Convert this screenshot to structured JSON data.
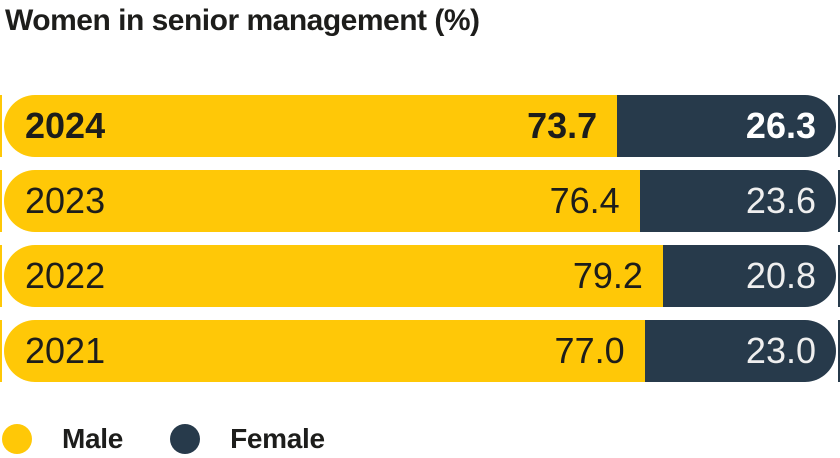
{
  "title": "Women in senior management (%)",
  "chart_data": {
    "type": "bar",
    "variant": "horizontal-stacked",
    "title": "Women in senior management (%)",
    "categories": [
      "2024",
      "2023",
      "2022",
      "2021"
    ],
    "series": [
      {
        "name": "Male",
        "color": "#FFC807",
        "values": [
          73.7,
          76.4,
          79.2,
          77.0
        ]
      },
      {
        "name": "Female",
        "color": "#273A4B",
        "values": [
          26.3,
          23.6,
          20.8,
          23.0
        ]
      }
    ],
    "value_format": "one-decimal-percent",
    "highlighted_category": "2024",
    "xlim": [
      0,
      100
    ],
    "grid": false,
    "legend_position": "bottom-left"
  },
  "legend": {
    "items": [
      {
        "label": "Male",
        "color": "#FFC807"
      },
      {
        "label": "Female",
        "color": "#273A4B"
      }
    ]
  },
  "colors": {
    "male": "#FFC807",
    "female": "#273A4B",
    "title_text": "#1D1D1B",
    "text_on_male": "#1D1D1B",
    "text_on_female": "#FFFFFF",
    "background": "#FFFFFF"
  }
}
